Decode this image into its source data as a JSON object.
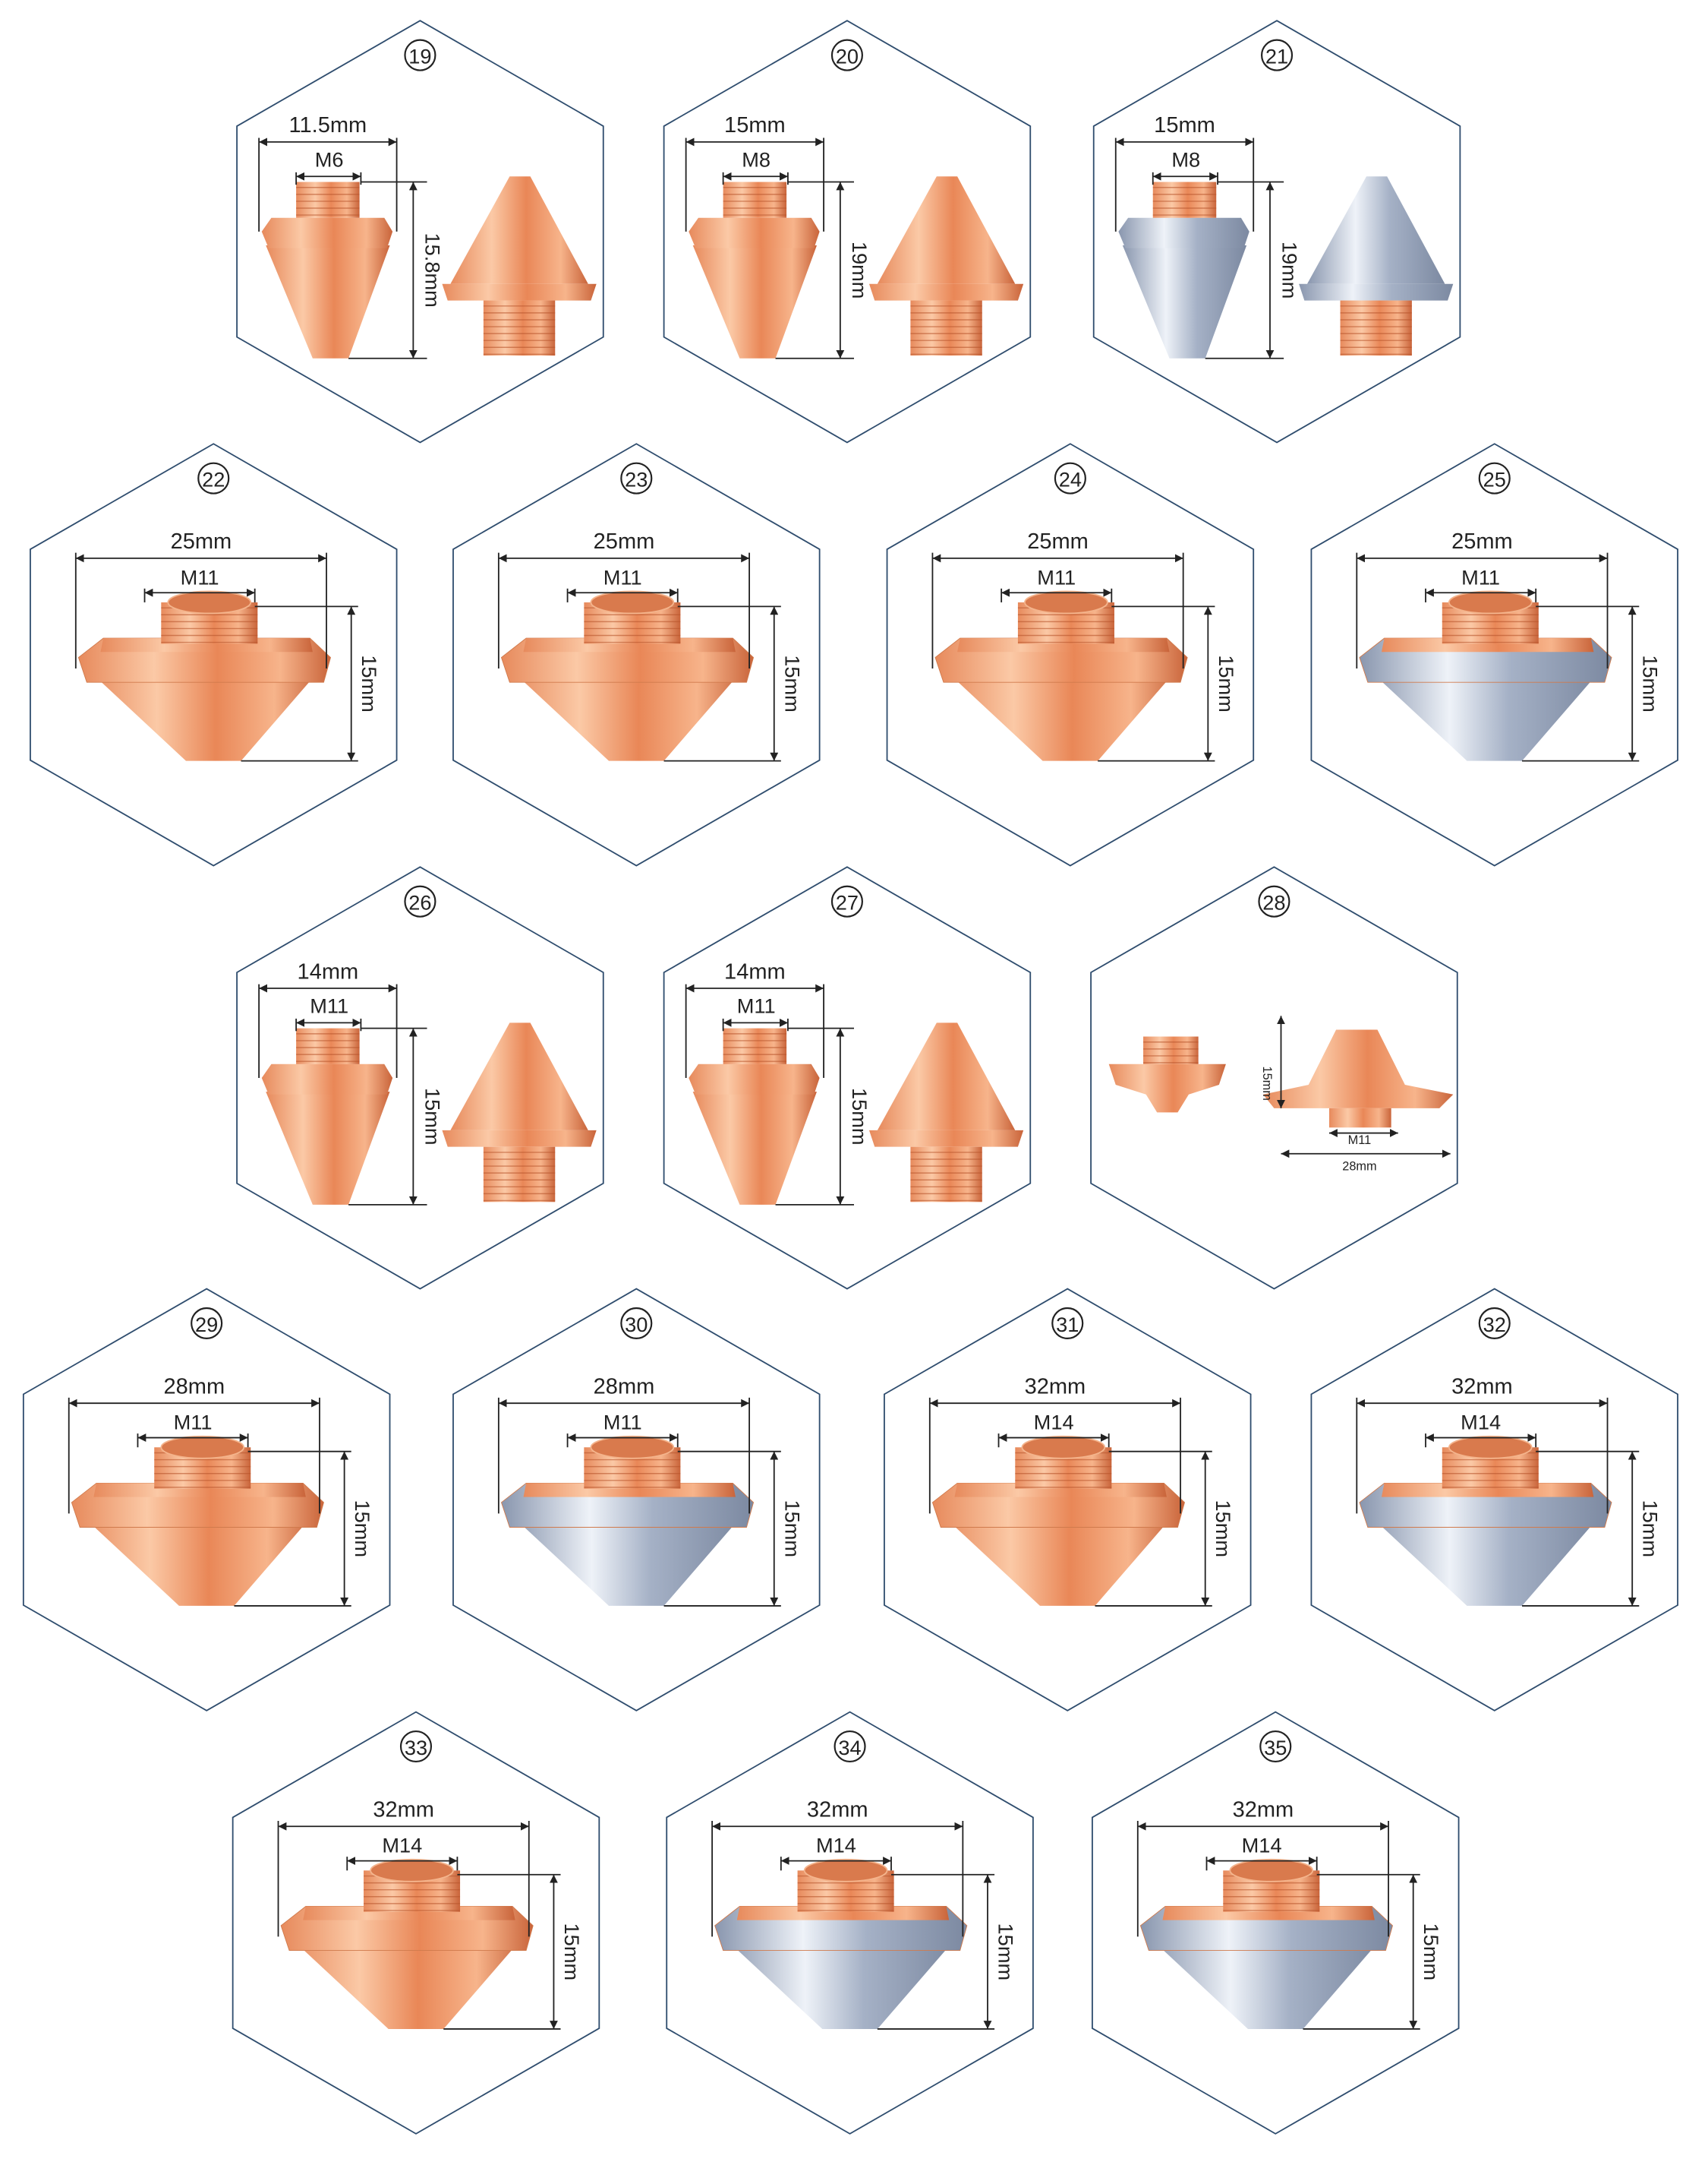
{
  "items": [
    {
      "number": "19",
      "width": "11.5mm",
      "thread": "M6",
      "height": "15.8mm"
    },
    {
      "number": "20",
      "width": "15mm",
      "thread": "M8",
      "height": "19mm"
    },
    {
      "number": "21",
      "width": "15mm",
      "thread": "M8",
      "height": "19mm"
    },
    {
      "number": "22",
      "width": "25mm",
      "thread": "M11",
      "height": "15mm"
    },
    {
      "number": "23",
      "width": "25mm",
      "thread": "M11",
      "height": "15mm"
    },
    {
      "number": "24",
      "width": "25mm",
      "thread": "M11",
      "height": "15mm"
    },
    {
      "number": "25",
      "width": "25mm",
      "thread": "M11",
      "height": "15mm"
    },
    {
      "number": "26",
      "width": "14mm",
      "thread": "M11",
      "height": "15mm"
    },
    {
      "number": "27",
      "width": "14mm",
      "thread": "M11",
      "height": "15mm"
    },
    {
      "number": "28",
      "width": "28mm",
      "thread": "M11",
      "height": "15mm"
    },
    {
      "number": "29",
      "width": "28mm",
      "thread": "M11",
      "height": "15mm"
    },
    {
      "number": "30",
      "width": "28mm",
      "thread": "M11",
      "height": "15mm"
    },
    {
      "number": "31",
      "width": "32mm",
      "thread": "M14",
      "height": "15mm"
    },
    {
      "number": "32",
      "width": "32mm",
      "thread": "M14",
      "height": "15mm"
    },
    {
      "number": "33",
      "width": "32mm",
      "thread": "M14",
      "height": "15mm"
    },
    {
      "number": "34",
      "width": "32mm",
      "thread": "M14",
      "height": "15mm"
    },
    {
      "number": "35",
      "width": "32mm",
      "thread": "M14",
      "height": "15mm"
    }
  ]
}
